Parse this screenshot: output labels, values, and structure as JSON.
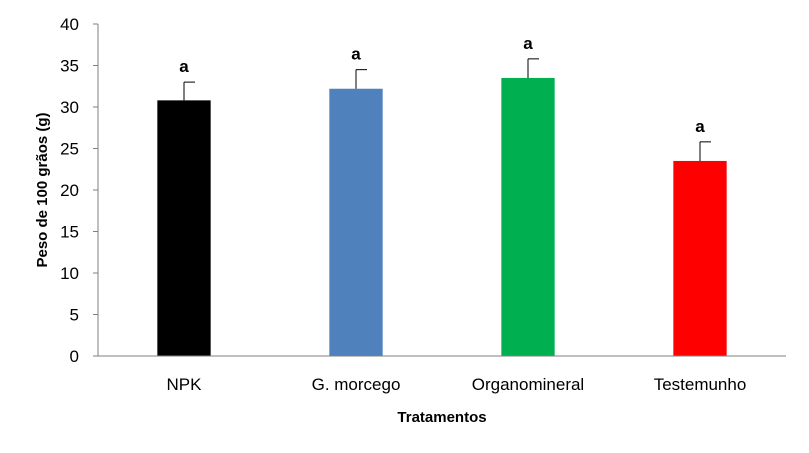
{
  "chart_data": {
    "type": "bar",
    "title": "",
    "xlabel": "Tratamentos",
    "ylabel": "Peso de 100 grãos (g)",
    "ylim": [
      0,
      40
    ],
    "yticks": [
      0,
      5,
      10,
      15,
      20,
      25,
      30,
      35,
      40
    ],
    "categories": [
      "NPK",
      "G. morcego",
      "Organomineral",
      "Testemunho"
    ],
    "values": [
      30.8,
      32.2,
      33.5,
      23.5
    ],
    "error_bars": [
      2.2,
      2.3,
      2.3,
      2.3
    ],
    "data_labels": [
      "a",
      "a",
      "a",
      "a"
    ],
    "colors": [
      "#000000",
      "#4F81BD",
      "#00B050",
      "#FF0000"
    ],
    "grid": false,
    "legend": "none"
  }
}
